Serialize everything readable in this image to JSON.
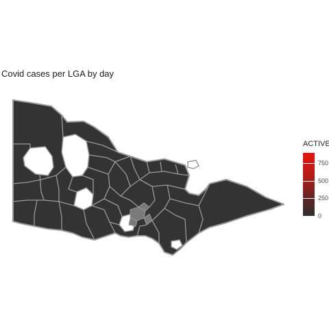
{
  "title": "Covid cases per LGA by day",
  "legend": {
    "title": "ACTIVE",
    "ticks": [
      "750",
      "500",
      "250",
      "0"
    ],
    "tick_values": [
      750,
      500,
      250,
      0
    ],
    "max_value": 900,
    "color_low": "#2e2e2e",
    "color_high": "#e8140f"
  },
  "map": {
    "fill": "#333333",
    "border": "#9a9a9a",
    "no_data_fill": "#ffffff"
  }
}
